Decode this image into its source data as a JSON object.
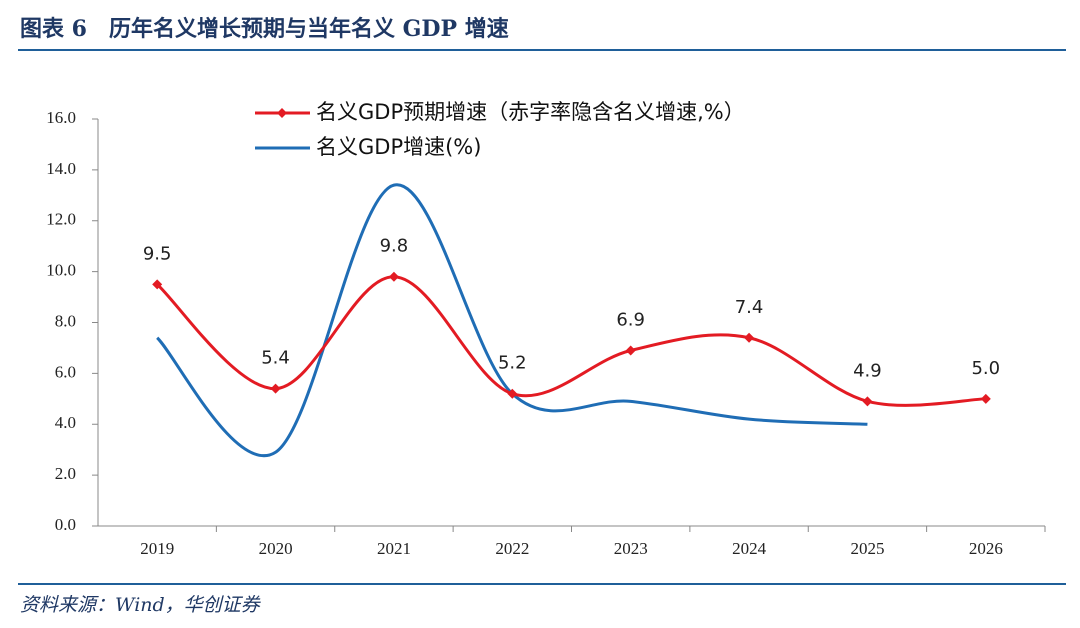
{
  "header": {
    "title": "图表 6　历年名义增长预期与当年名义 GDP 增速"
  },
  "chart_data": {
    "type": "line",
    "categories": [
      "2019",
      "2020",
      "2021",
      "2022",
      "2023",
      "2024",
      "2025",
      "2026"
    ],
    "series": [
      {
        "name": "名义GDP预期增速（赤字率隐含名义增速,%）",
        "color": "#e31b23",
        "marker": "diamond",
        "values": [
          9.5,
          5.4,
          9.8,
          5.2,
          6.9,
          7.4,
          4.9,
          5.0
        ],
        "value_labels": [
          "9.5",
          "5.4",
          "9.8",
          "5.2",
          "6.9",
          "7.4",
          "4.9",
          "5.0"
        ]
      },
      {
        "name": "名义GDP增速(%)",
        "color": "#1f6db5",
        "values": [
          7.4,
          2.9,
          13.4,
          5.2,
          4.9,
          4.2,
          4.0,
          null
        ]
      }
    ],
    "ylim": [
      0,
      16
    ],
    "yticks": [
      {
        "value": 0,
        "label": "0.0"
      },
      {
        "value": 2,
        "label": "2.0"
      },
      {
        "value": 4,
        "label": "4.0"
      },
      {
        "value": 6,
        "label": "6.0"
      },
      {
        "value": 8,
        "label": "8.0"
      },
      {
        "value": 10,
        "label": "10.0"
      },
      {
        "value": 12,
        "label": "12.0"
      },
      {
        "value": 14,
        "label": "14.0"
      },
      {
        "value": 16,
        "label": "16.0"
      }
    ],
    "smooth": true
  },
  "footer": {
    "source": "资料来源：Wind，华创证券"
  }
}
